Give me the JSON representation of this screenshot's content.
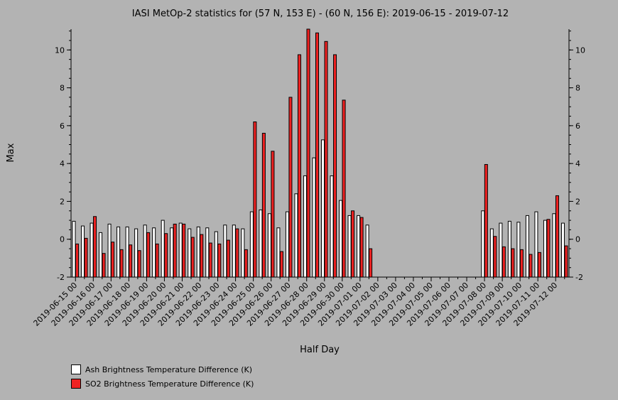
{
  "chart_data": {
    "type": "bar",
    "title": "IASI MetOp-2 statistics for (57 N, 153 E) - (60 N, 156 E): 2019-06-15 - 2019-07-12",
    "xlabel": "Half Day",
    "ylabel": "Max",
    "ylim": [
      -2,
      11.1
    ],
    "yticks": [
      -2,
      0,
      2,
      4,
      6,
      8,
      10
    ],
    "grid": false,
    "categories": [
      "2019-06-15 00",
      "2019-06-15 12",
      "2019-06-16 00",
      "2019-06-16 12",
      "2019-06-17 00",
      "2019-06-17 12",
      "2019-06-18 00",
      "2019-06-18 12",
      "2019-06-19 00",
      "2019-06-19 12",
      "2019-06-20 00",
      "2019-06-20 12",
      "2019-06-21 00",
      "2019-06-21 12",
      "2019-06-22 00",
      "2019-06-22 12",
      "2019-06-23 00",
      "2019-06-23 12",
      "2019-06-24 00",
      "2019-06-24 12",
      "2019-06-25 00",
      "2019-06-25 12",
      "2019-06-26 00",
      "2019-06-26 12",
      "2019-06-27 00",
      "2019-06-27 12",
      "2019-06-28 00",
      "2019-06-28 12",
      "2019-06-29 00",
      "2019-06-29 12",
      "2019-06-30 00",
      "2019-06-30 12",
      "2019-07-01 00",
      "2019-07-01 12",
      "2019-07-02 00",
      "2019-07-02 12",
      "2019-07-03 00",
      "2019-07-03 12",
      "2019-07-04 00",
      "2019-07-04 12",
      "2019-07-05 00",
      "2019-07-05 12",
      "2019-07-06 00",
      "2019-07-06 12",
      "2019-07-07 00",
      "2019-07-07 12",
      "2019-07-08 00",
      "2019-07-08 12",
      "2019-07-09 00",
      "2019-07-09 12",
      "2019-07-10 00",
      "2019-07-10 12",
      "2019-07-11 00",
      "2019-07-11 12",
      "2019-07-12 00",
      "2019-07-12 12"
    ],
    "tick_labels": [
      "2019-06-15 00",
      "2019-06-16 00",
      "2019-06-17 00",
      "2019-06-18 00",
      "2019-06-19 00",
      "2019-06-20 00",
      "2019-06-21 00",
      "2019-06-22 00",
      "2019-06-23 00",
      "2019-06-24 00",
      "2019-06-25 00",
      "2019-06-26 00",
      "2019-06-27 00",
      "2019-06-28 00",
      "2019-06-29 00",
      "2019-06-30 00",
      "2019-07-01 00",
      "2019-07-02 00",
      "2019-07-03 00",
      "2019-07-04 00",
      "2019-07-05 00",
      "2019-07-06 00",
      "2019-07-07 00",
      "2019-07-08 00",
      "2019-07-09 00",
      "2019-07-10 00",
      "2019-07-11 00",
      "2019-07-12 00"
    ],
    "series": [
      {
        "name": "Ash Brightness Temperature Difference (K)",
        "color": "#ffffff",
        "values": [
          0.95,
          0.7,
          0.85,
          0.35,
          0.8,
          0.65,
          0.65,
          0.55,
          0.75,
          0.6,
          1.0,
          0.6,
          0.85,
          0.55,
          0.65,
          0.6,
          0.4,
          0.75,
          0.75,
          0.55,
          1.45,
          1.55,
          1.35,
          0.6,
          1.45,
          2.4,
          3.35,
          4.3,
          5.25,
          3.35,
          2.05,
          1.25,
          1.25,
          0.75,
          null,
          null,
          null,
          null,
          null,
          null,
          null,
          null,
          null,
          null,
          null,
          null,
          1.5,
          0.55,
          0.85,
          0.95,
          0.9,
          1.25,
          1.45,
          1.0,
          1.35,
          0.85
        ]
      },
      {
        "name": "SO2 Brightness Temperature Difference (K)",
        "color": "#ee2222",
        "values": [
          -0.25,
          0.05,
          1.2,
          -0.75,
          -0.15,
          -0.55,
          -0.3,
          -0.6,
          0.35,
          -0.25,
          0.3,
          0.8,
          0.8,
          0.1,
          0.25,
          -0.2,
          -0.25,
          -0.05,
          0.55,
          -0.55,
          6.2,
          5.6,
          4.65,
          -0.65,
          7.5,
          9.75,
          11.1,
          10.9,
          10.45,
          9.75,
          7.35,
          1.5,
          1.15,
          -0.5,
          null,
          null,
          null,
          null,
          null,
          null,
          null,
          null,
          null,
          null,
          null,
          null,
          3.95,
          0.15,
          -0.4,
          -0.5,
          -0.55,
          -0.8,
          -0.7,
          1.05,
          2.3,
          -0.35
        ]
      }
    ]
  }
}
